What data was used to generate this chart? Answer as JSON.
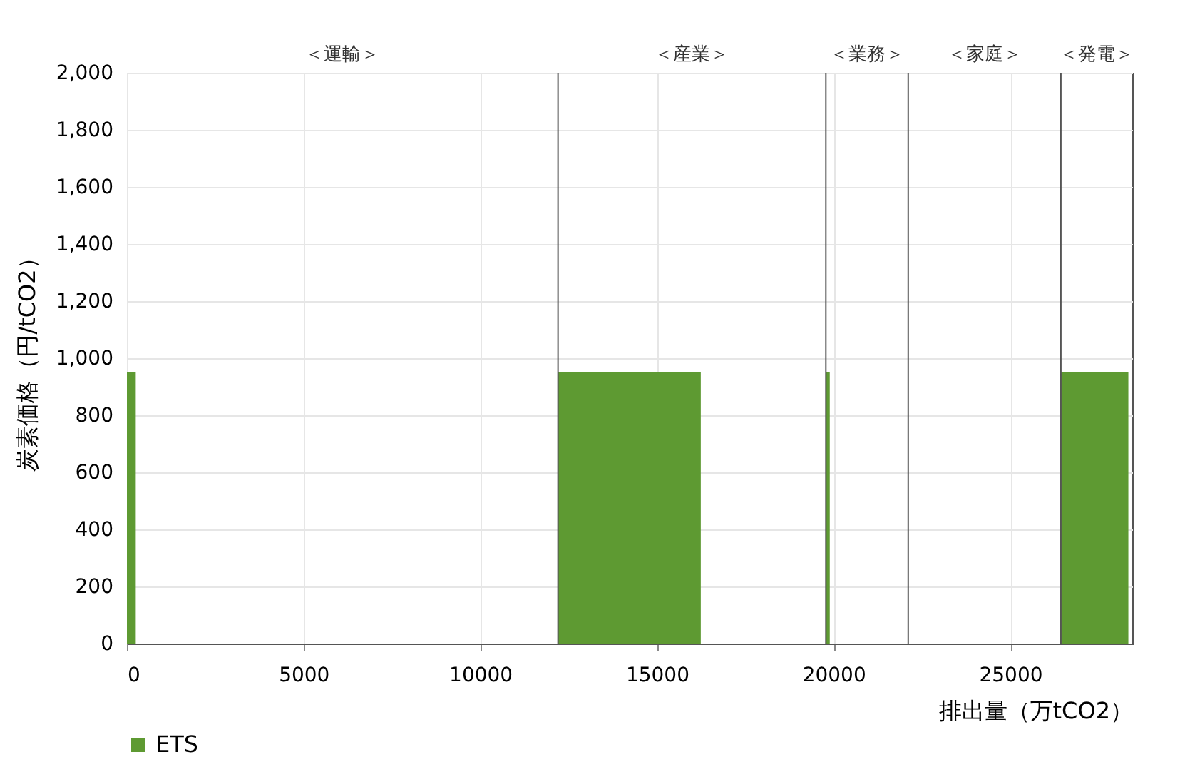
{
  "chart_data": {
    "type": "area",
    "xlabel": "排出量（万tCO2）",
    "ylabel": "炭素価格（円/tCO2）",
    "series": [
      {
        "name": "ETS",
        "color": "#5e9a32",
        "x": [
          0,
          250,
          6000,
          12200,
          16240,
          18000,
          19780,
          19890,
          23000,
          26430,
          28340
        ],
        "values": [
          950,
          950,
          null,
          950,
          950,
          null,
          950,
          950,
          null,
          950,
          950
        ]
      }
    ],
    "xlim": [
      0,
      28450
    ],
    "xticks": [
      0,
      5000,
      10000,
      15000,
      20000,
      25000
    ],
    "ylim": [
      0,
      2000
    ],
    "yticks": [
      0,
      200,
      400,
      600,
      800,
      {
        "value": 1000,
        "label": "1,000"
      },
      {
        "value": 1200,
        "label": "1,200"
      },
      {
        "value": 1400,
        "label": "1,400"
      },
      {
        "value": 1600,
        "label": "1,600"
      },
      {
        "value": 1800,
        "label": "1,800"
      },
      {
        "value": 2000,
        "label": "2,000"
      }
    ],
    "ref_lines": [
      {
        "axis": "x",
        "value": 12200,
        "color": "#555555"
      },
      {
        "axis": "x",
        "value": 19780,
        "color": "#555555"
      },
      {
        "axis": "x",
        "value": 22110,
        "color": "#555555"
      },
      {
        "axis": "x",
        "value": 26430,
        "color": "#555555"
      }
    ],
    "annotations": [
      "＜運輸＞",
      "＜産業＞",
      "＜業務＞",
      "＜家庭＞",
      "＜発電＞"
    ],
    "grid": true,
    "legend": "bottom"
  }
}
